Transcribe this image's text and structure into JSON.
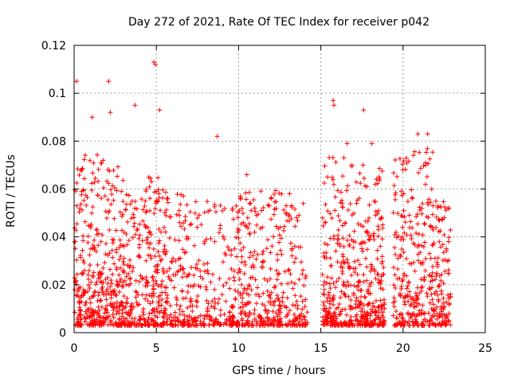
{
  "chart_data": {
    "type": "scatter",
    "title": "Day 272 of 2021, Rate Of TEC Index for receiver p042",
    "xlabel": "GPS time / hours",
    "ylabel": "ROTI / TECUs",
    "xlim": [
      0,
      25
    ],
    "ylim": [
      0,
      0.12
    ],
    "x_ticks": [
      0,
      5,
      10,
      15,
      20,
      25
    ],
    "y_ticks": [
      0,
      0.02,
      0.04,
      0.06,
      0.08,
      0.1,
      0.12
    ],
    "x_tick_labels": [
      "0",
      "5",
      "10",
      "15",
      "20",
      "25"
    ],
    "y_tick_labels": [
      "0",
      "0.02",
      "0.04",
      "0.06",
      "0.08",
      "0.1",
      "0.12"
    ],
    "grid": true,
    "marker": "plus",
    "series_color": "#ff0000",
    "notable_points": [
      {
        "x": 0.15,
        "y": 0.105
      },
      {
        "x": 2.1,
        "y": 0.105
      },
      {
        "x": 4.85,
        "y": 0.113
      },
      {
        "x": 4.95,
        "y": 0.112
      },
      {
        "x": 3.7,
        "y": 0.095
      },
      {
        "x": 2.2,
        "y": 0.092
      },
      {
        "x": 1.1,
        "y": 0.09
      },
      {
        "x": 5.2,
        "y": 0.093
      },
      {
        "x": 15.75,
        "y": 0.097
      },
      {
        "x": 15.8,
        "y": 0.095
      },
      {
        "x": 17.6,
        "y": 0.093
      },
      {
        "x": 8.7,
        "y": 0.082
      },
      {
        "x": 20.9,
        "y": 0.083
      },
      {
        "x": 21.5,
        "y": 0.083
      },
      {
        "x": 18.1,
        "y": 0.079
      },
      {
        "x": 16.6,
        "y": 0.079
      },
      {
        "x": 10.5,
        "y": 0.066
      },
      {
        "x": 13.1,
        "y": 0.058
      },
      {
        "x": 22.8,
        "y": 0.052
      }
    ],
    "dense_regions": [
      {
        "x_range": [
          0.0,
          1.8
        ],
        "y_max": 0.075,
        "density": 260
      },
      {
        "x_range": [
          1.8,
          3.0
        ],
        "y_max": 0.07,
        "density": 160
      },
      {
        "x_range": [
          3.0,
          4.5
        ],
        "y_max": 0.06,
        "density": 170
      },
      {
        "x_range": [
          4.5,
          5.6
        ],
        "y_max": 0.065,
        "density": 150
      },
      {
        "x_range": [
          5.6,
          7.3
        ],
        "y_max": 0.058,
        "density": 150
      },
      {
        "x_range": [
          7.3,
          9.6
        ],
        "y_max": 0.055,
        "density": 150
      },
      {
        "x_range": [
          9.6,
          12.7
        ],
        "y_max": 0.06,
        "density": 300
      },
      {
        "x_range": [
          12.7,
          14.2
        ],
        "y_max": 0.055,
        "density": 110
      },
      {
        "x_range": [
          15.1,
          17.0
        ],
        "y_max": 0.075,
        "density": 240
      },
      {
        "x_range": [
          17.0,
          18.9
        ],
        "y_max": 0.07,
        "density": 260
      },
      {
        "x_range": [
          19.4,
          21.8
        ],
        "y_max": 0.078,
        "density": 280
      },
      {
        "x_range": [
          21.8,
          22.9
        ],
        "y_max": 0.055,
        "density": 130
      }
    ]
  }
}
